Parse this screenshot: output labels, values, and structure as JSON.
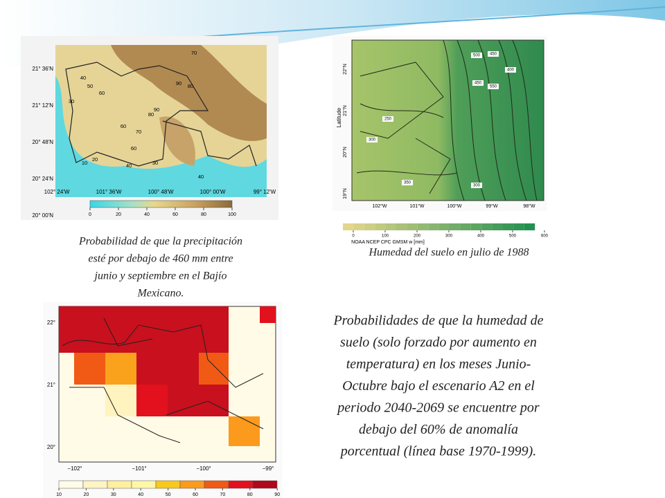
{
  "slide": {
    "map1": {
      "lat_labels": [
        "21° 36'N",
        "21° 12'N",
        "20° 48'N",
        "20° 24'N",
        "20° 00'N"
      ],
      "lon_labels": [
        "102° 24'W",
        "101° 36'W",
        "100° 48'W",
        "100° 00'W",
        "99° 12'W"
      ],
      "contour_labels": [
        70,
        40,
        50,
        60,
        30,
        90,
        80,
        90,
        80,
        60,
        70,
        60,
        20,
        10,
        40,
        30,
        40
      ],
      "colorbar_ticks": [
        0,
        20,
        40,
        60,
        80,
        100
      ],
      "caption": [
        "Probabilidad de que la precipitación",
        "esté por debajo de 460 mm entre",
        "junio y septiembre en el Bajío",
        "Mexicano."
      ]
    },
    "map2": {
      "y_axis_label": "Latitude",
      "lat_labels": [
        "22°N",
        "21°N",
        "20°N",
        "19°N"
      ],
      "lon_labels": [
        "102°W",
        "101°W",
        "100°W",
        "99°W",
        "98°W"
      ],
      "contour_labels": [
        500,
        450,
        400,
        450,
        550,
        250,
        300,
        350,
        300
      ],
      "colorbar_ticks": [
        0,
        100,
        200,
        300,
        400,
        500,
        600
      ],
      "colorbar_title": "NOAA NCEP CPC GMSM w [mm]",
      "caption": "Humedad del suelo en julio de 1988"
    },
    "map3": {
      "lat_labels": [
        "22°",
        "21°",
        "20°"
      ],
      "lon_labels": [
        "−102°",
        "−101°",
        "−100°",
        "−99°"
      ],
      "colorbar_ticks": [
        10,
        20,
        30,
        40,
        50,
        60,
        70,
        80,
        90
      ]
    },
    "description": [
      "Probabilidades de que la humedad de",
      "suelo (solo forzado por aumento en",
      "temperatura) en los meses Junio-",
      "Octubre bajo el escenario A2 en el",
      "periodo 2040-2069 se encuentre por",
      "debajo del 60% de anomalía",
      "porcentual (línea base 1970-1999)."
    ]
  }
}
